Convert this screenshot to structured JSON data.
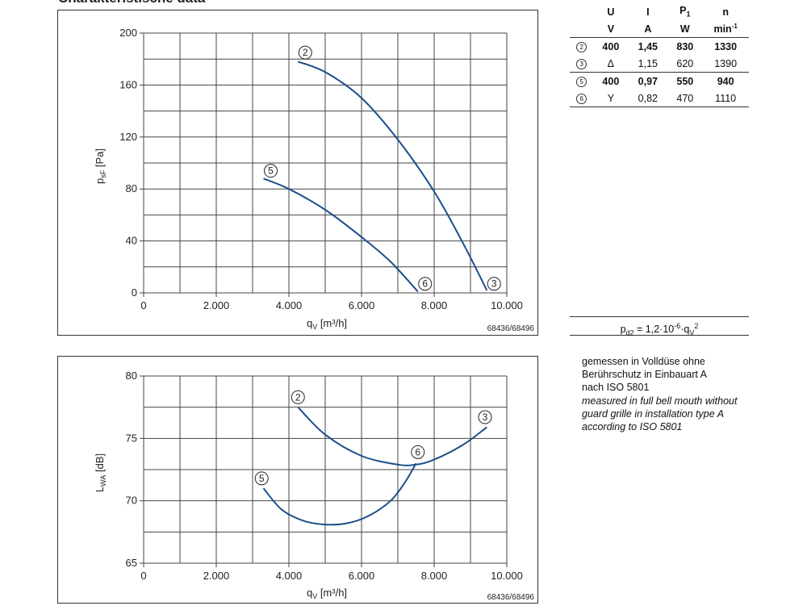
{
  "heading": "Charakteristische data",
  "ratings_table": {
    "headers": [
      "U",
      "I",
      "P1",
      "n"
    ],
    "units": [
      "V",
      "A",
      "W",
      "min-1"
    ],
    "rows": [
      {
        "curve": "2",
        "U": "400",
        "I": "1,45",
        "P": "830",
        "n": "1330",
        "bold": true
      },
      {
        "curve": "3",
        "U": "Δ",
        "I": "1,15",
        "P": "620",
        "n": "1390",
        "bold": false
      },
      {
        "curve": "5",
        "U": "400",
        "I": "0,97",
        "P": "550",
        "n": "940",
        "bold": true
      },
      {
        "curve": "6",
        "U": "Y",
        "I": "0,82",
        "P": "470",
        "n": "1110",
        "bold": false
      }
    ]
  },
  "formula": "pd2 = 1,2·10-6·qV2",
  "note": {
    "de": "gemessen in Volldüse ohne\nBerührschutz in Einbauart A\nnach ISO 5801",
    "en": "measured in full bell mouth without\nguard grille in installation type A\naccording to ISO 5801"
  },
  "chart_data": [
    {
      "type": "line",
      "xlabel": "qV [m³/h]",
      "ylabel": "psF [Pa]",
      "xlim": [
        0,
        10000
      ],
      "ylim": [
        0,
        200
      ],
      "xticks": [
        0,
        2000,
        4000,
        6000,
        8000,
        10000
      ],
      "xtick_labels": [
        "0",
        "2.000",
        "4.000",
        "6.000",
        "8.000",
        "10.000"
      ],
      "yticks": [
        0,
        40,
        80,
        120,
        160,
        200
      ],
      "grid": true,
      "ref": "68436/68496",
      "series": [
        {
          "name": "2-3",
          "label_start": "2",
          "label_end": "3",
          "x": [
            4250,
            5000,
            6000,
            7000,
            8000,
            8800,
            9450
          ],
          "y": [
            178,
            170,
            150,
            118,
            78,
            38,
            2
          ]
        },
        {
          "name": "5-6",
          "label_start": "5",
          "label_end": "6",
          "x": [
            3300,
            4000,
            5000,
            6000,
            6800,
            7550
          ],
          "y": [
            88,
            80,
            64,
            43,
            24,
            1
          ]
        }
      ],
      "markers": [
        {
          "label": "2",
          "x": 4450,
          "y": 185
        },
        {
          "label": "3",
          "x": 9650,
          "y": 7
        },
        {
          "label": "5",
          "x": 3500,
          "y": 94
        },
        {
          "label": "6",
          "x": 7750,
          "y": 7
        }
      ]
    },
    {
      "type": "line",
      "xlabel": "qV [m³/h]",
      "ylabel": "LWA [dB]",
      "xlim": [
        0,
        10000
      ],
      "ylim": [
        65,
        80
      ],
      "xticks": [
        0,
        2000,
        4000,
        6000,
        8000,
        10000
      ],
      "xtick_labels": [
        "0",
        "2.000",
        "4.000",
        "6.000",
        "8.000",
        "10.000"
      ],
      "yticks": [
        65,
        70,
        75,
        80
      ],
      "grid": true,
      "ref": "68436/68496",
      "series": [
        {
          "name": "2-3",
          "label_start": "2",
          "label_end": "3",
          "x": [
            4250,
            5000,
            6000,
            7000,
            7500,
            8000,
            8800,
            9450
          ],
          "y": [
            77.5,
            75.3,
            73.6,
            72.9,
            72.9,
            73.3,
            74.5,
            75.9
          ]
        },
        {
          "name": "5-6",
          "label_start": "5",
          "label_end": "6",
          "x": [
            3300,
            3800,
            4400,
            5000,
            5600,
            6200,
            6800,
            7200,
            7500
          ],
          "y": [
            71.0,
            69.3,
            68.4,
            68.1,
            68.2,
            68.8,
            70.0,
            71.5,
            73.0
          ]
        }
      ],
      "markers": [
        {
          "label": "2",
          "x": 4250,
          "y": 78.3
        },
        {
          "label": "3",
          "x": 9400,
          "y": 76.7
        },
        {
          "label": "5",
          "x": 3250,
          "y": 71.8
        },
        {
          "label": "6",
          "x": 7550,
          "y": 73.9
        }
      ]
    }
  ]
}
